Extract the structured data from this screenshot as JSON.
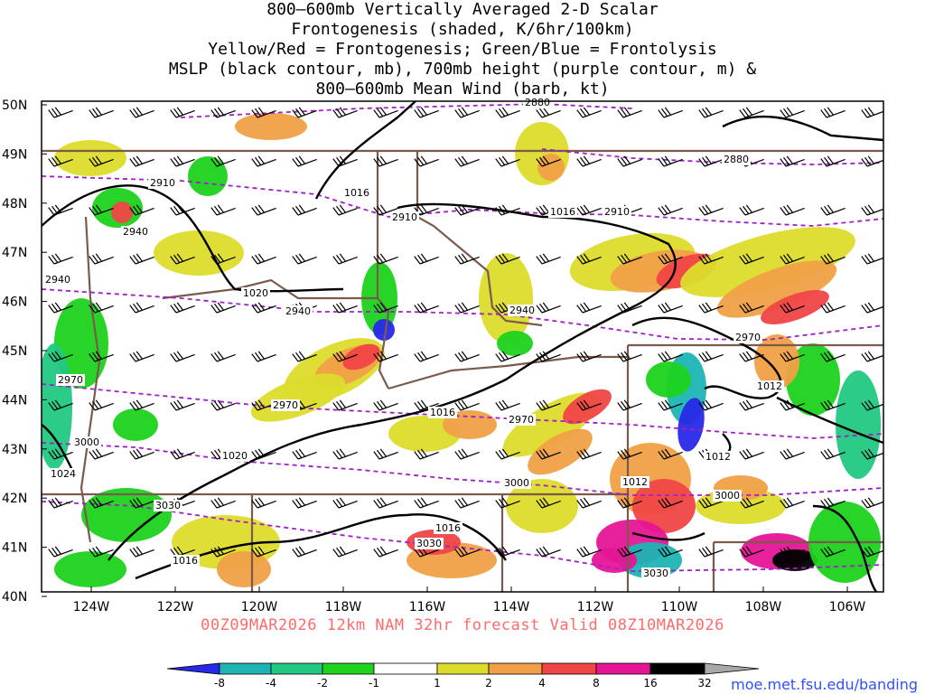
{
  "title_lines": [
    "800–600mb Vertically Averaged 2-D Scalar",
    "Frontogenesis (shaded, K/6hr/100km)",
    "Yellow/Red = Frontogenesis;  Green/Blue = Frontolysis",
    "MSLP (black contour, mb), 700mb height (purple contour, m) &",
    "800–600mb Mean Wind (barb, kt)"
  ],
  "lat_labels": [
    "50N",
    "49N",
    "48N",
    "47N",
    "46N",
    "45N",
    "44N",
    "43N",
    "42N",
    "41N",
    "40N"
  ],
  "lon_labels": [
    "124W",
    "122W",
    "120W",
    "118W",
    "116W",
    "114W",
    "112W",
    "110W",
    "108W",
    "106W"
  ],
  "valid_text": "00Z09MAR2026 12km NAM 32hr forecast Valid 08Z10MAR2026",
  "credit": "moe.met.fsu.edu/banding",
  "colorbar": {
    "labels": [
      "-8",
      "-4",
      "-2",
      "-1",
      "1",
      "2",
      "4",
      "8",
      "16",
      "32"
    ],
    "colors": [
      "#2828e8",
      "#1eb4b4",
      "#22c882",
      "#1ed21e",
      "#ffffff",
      "#dcdc2c",
      "#f0a046",
      "#f04646",
      "#e61496",
      "#000000",
      "#a8a8a8"
    ]
  },
  "contour_labels": {
    "mslp": [
      "1016",
      "1020",
      "1016",
      "1016",
      "1020",
      "1024",
      "1016",
      "1012",
      "1012",
      "1012",
      "1016"
    ],
    "height": [
      "2880",
      "2880",
      "2910",
      "2910",
      "2910",
      "2940",
      "2940",
      "2940",
      "2970",
      "2970",
      "2970",
      "2970",
      "3000",
      "3000",
      "3000",
      "3030",
      "3030",
      "3030",
      "2940"
    ]
  },
  "colors": {
    "state_border": "#7a5a4a",
    "mslp": "#000000",
    "height": "#a020c8",
    "barb": "#000000"
  }
}
